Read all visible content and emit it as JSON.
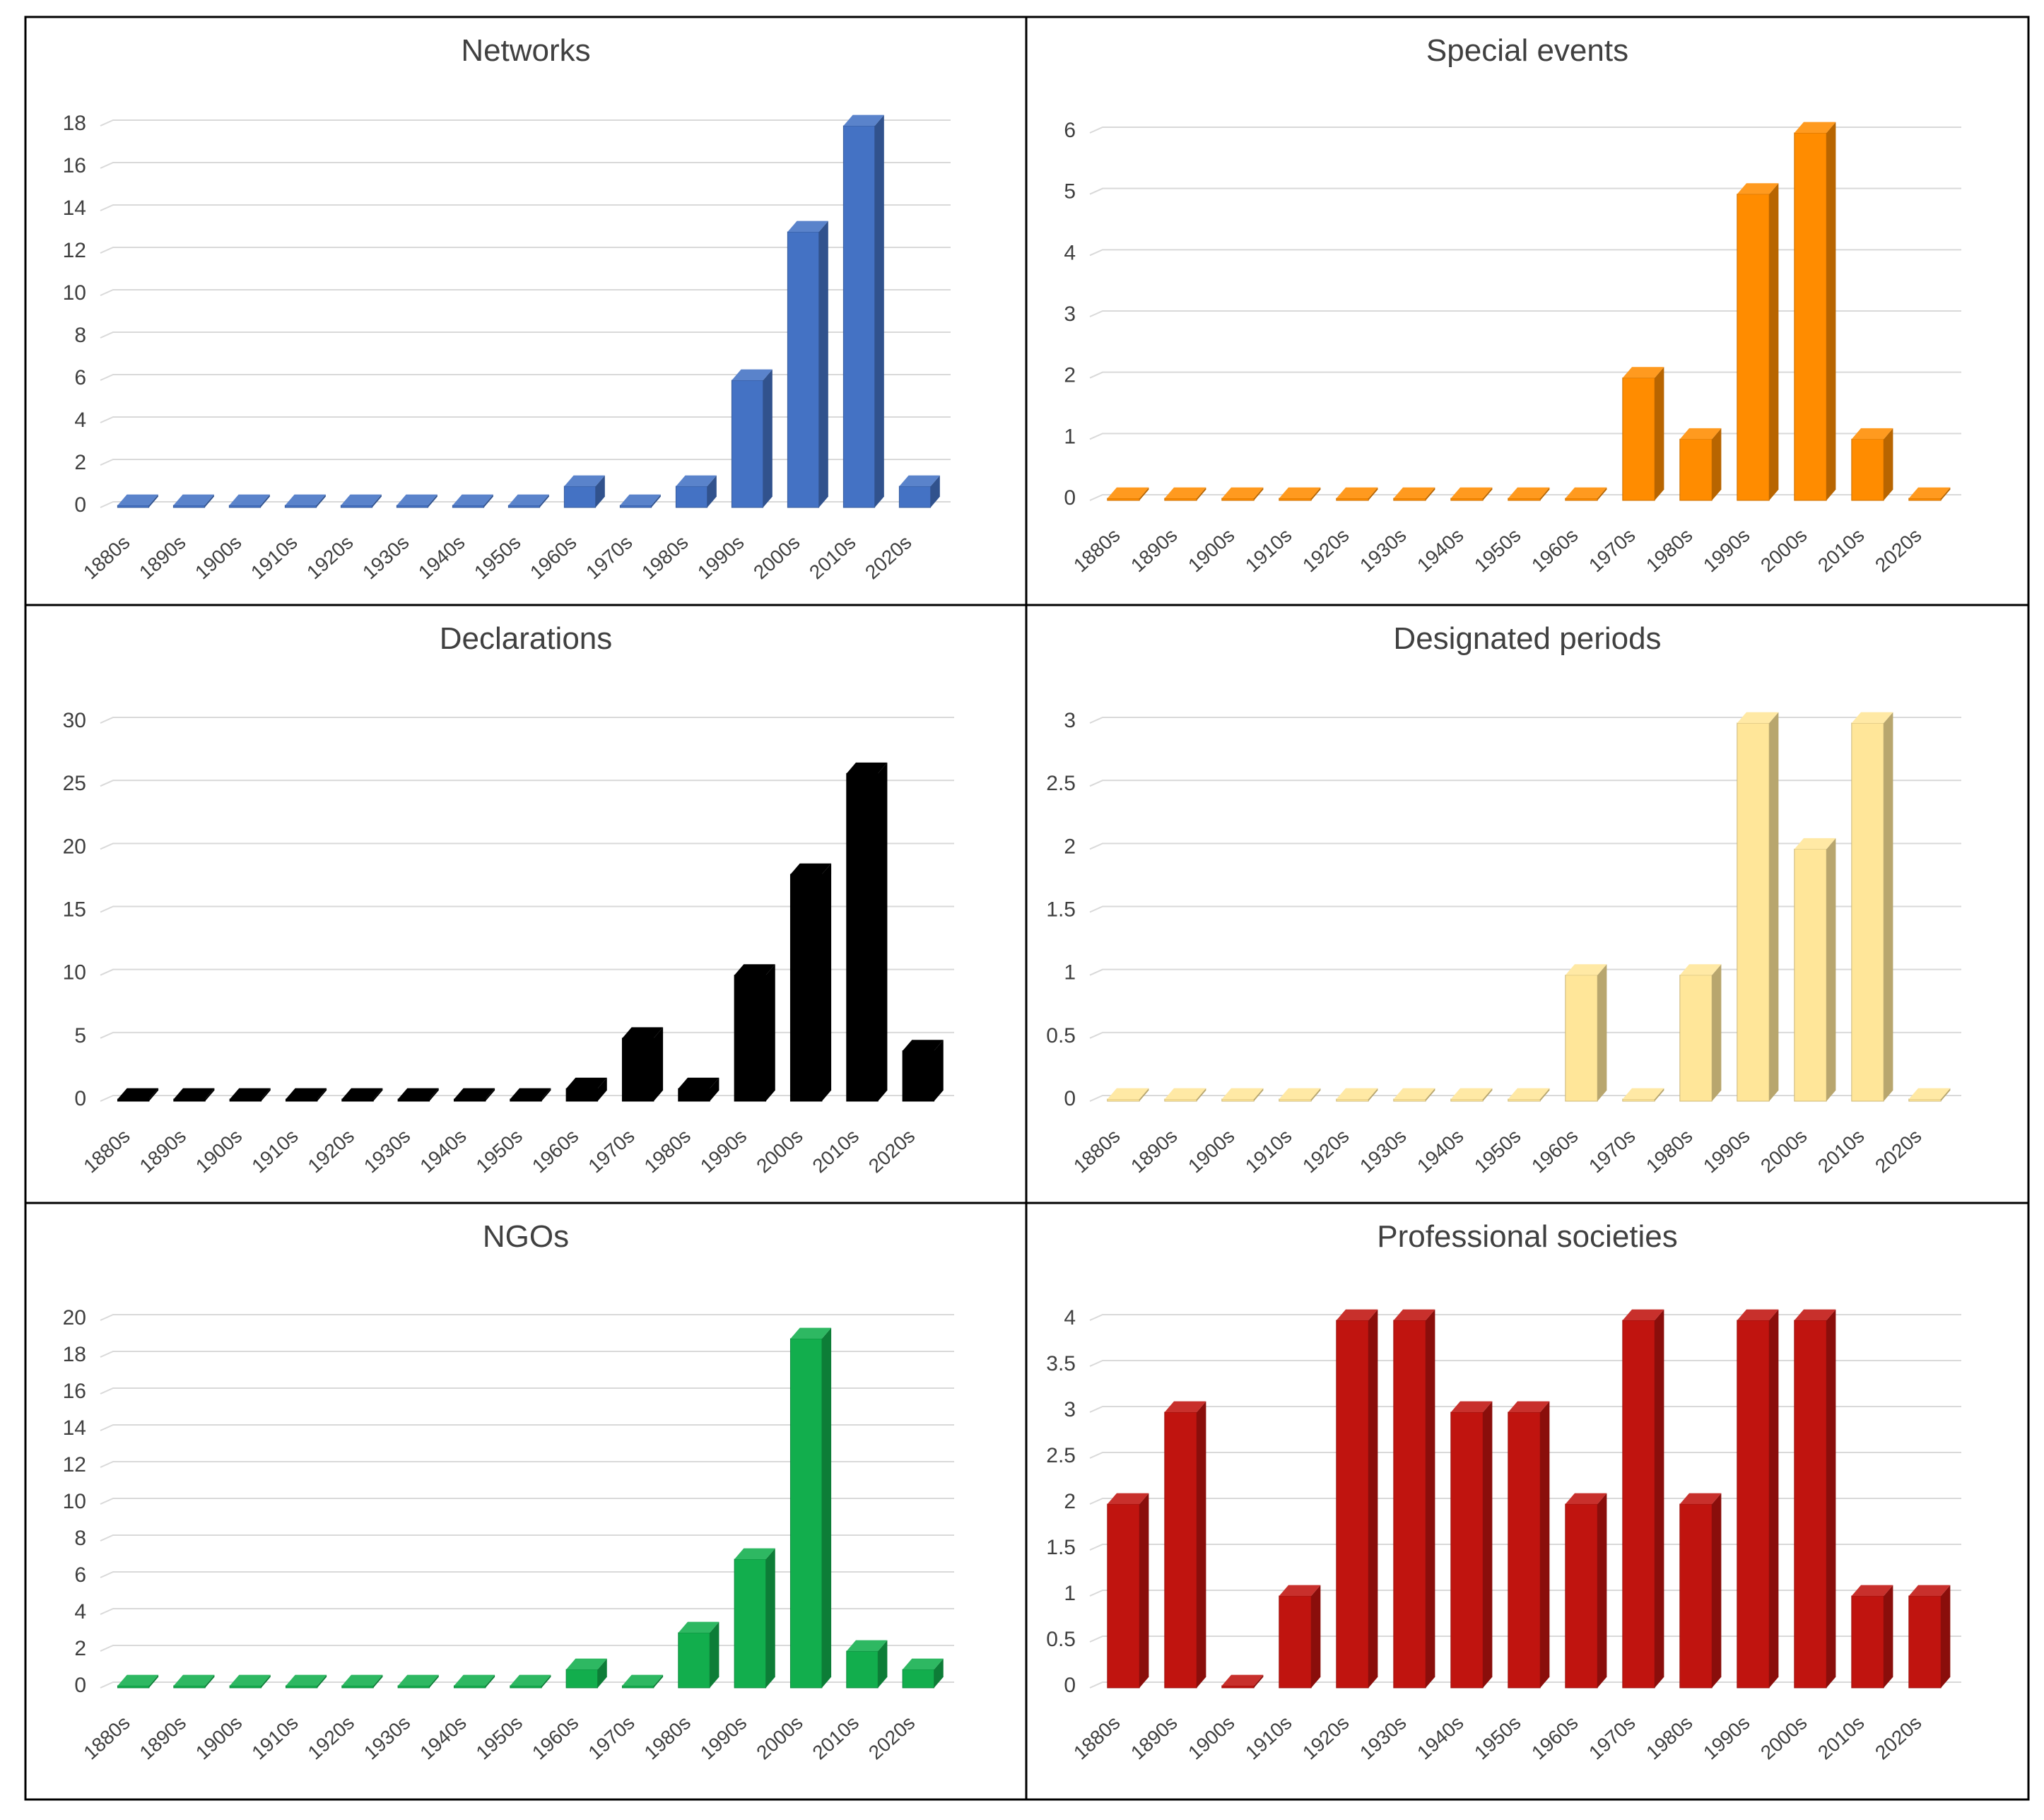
{
  "chart_data": [
    {
      "type": "bar",
      "title": "Networks",
      "categories": [
        "1880s",
        "1890s",
        "1900s",
        "1910s",
        "1920s",
        "1930s",
        "1940s",
        "1950s",
        "1960s",
        "1970s",
        "1980s",
        "1990s",
        "2000s",
        "2010s",
        "2020s"
      ],
      "values": [
        0,
        0,
        0,
        0,
        0,
        0,
        0,
        0,
        1,
        0,
        1,
        6,
        13,
        18,
        1
      ],
      "ylim": [
        0,
        18
      ],
      "yticks": [
        "0",
        "2",
        "4",
        "6",
        "8",
        "10",
        "12",
        "14",
        "16",
        "18"
      ],
      "xlabel": "",
      "ylabel": "",
      "color": "#4472C4"
    },
    {
      "type": "bar",
      "title": "Special events",
      "categories": [
        "1880s",
        "1890s",
        "1900s",
        "1910s",
        "1920s",
        "1930s",
        "1940s",
        "1950s",
        "1960s",
        "1970s",
        "1980s",
        "1990s",
        "2000s",
        "2010s",
        "2020s"
      ],
      "values": [
        0,
        0,
        0,
        0,
        0,
        0,
        0,
        0,
        0,
        2,
        1,
        5,
        6,
        1,
        0
      ],
      "ylim": [
        0,
        6
      ],
      "yticks": [
        "0",
        "1",
        "2",
        "3",
        "4",
        "5",
        "6"
      ],
      "xlabel": "",
      "ylabel": "",
      "color": "#FF8C00"
    },
    {
      "type": "bar",
      "title": "Declarations",
      "categories": [
        "1880s",
        "1890s",
        "1900s",
        "1910s",
        "1920s",
        "1930s",
        "1940s",
        "1950s",
        "1960s",
        "1970s",
        "1980s",
        "1990s",
        "2000s",
        "2010s",
        "2020s"
      ],
      "values": [
        0,
        0,
        0,
        0,
        0,
        0,
        0,
        0,
        1,
        5,
        1,
        10,
        18,
        26,
        4
      ],
      "ylim": [
        0,
        30
      ],
      "yticks": [
        "0",
        "5",
        "10",
        "15",
        "20",
        "25",
        "30"
      ],
      "xlabel": "",
      "ylabel": "",
      "color": "#000000"
    },
    {
      "type": "bar",
      "title": "Designated periods",
      "categories": [
        "1880s",
        "1890s",
        "1900s",
        "1910s",
        "1920s",
        "1930s",
        "1940s",
        "1950s",
        "1960s",
        "1970s",
        "1980s",
        "1990s",
        "2000s",
        "2010s",
        "2020s"
      ],
      "values": [
        0,
        0,
        0,
        0,
        0,
        0,
        0,
        0,
        1,
        0,
        1,
        3,
        2,
        3,
        0
      ],
      "ylim": [
        0,
        3
      ],
      "yticks": [
        "0",
        "0.5",
        "1",
        "1.5",
        "2",
        "2.5",
        "3"
      ],
      "xlabel": "",
      "ylabel": "",
      "color": "#FFE699"
    },
    {
      "type": "bar",
      "title": "NGOs",
      "categories": [
        "1880s",
        "1890s",
        "1900s",
        "1910s",
        "1920s",
        "1930s",
        "1940s",
        "1950s",
        "1960s",
        "1970s",
        "1980s",
        "1990s",
        "2000s",
        "2010s",
        "2020s"
      ],
      "values": [
        0,
        0,
        0,
        0,
        0,
        0,
        0,
        0,
        1,
        0,
        3,
        7,
        19,
        2,
        1
      ],
      "ylim": [
        0,
        20
      ],
      "yticks": [
        "0",
        "2",
        "4",
        "6",
        "8",
        "10",
        "12",
        "14",
        "16",
        "18",
        "20"
      ],
      "xlabel": "",
      "ylabel": "",
      "color": "#12AE4D"
    },
    {
      "type": "bar",
      "title": "Professional societies",
      "categories": [
        "1880s",
        "1890s",
        "1900s",
        "1910s",
        "1920s",
        "1930s",
        "1940s",
        "1950s",
        "1960s",
        "1970s",
        "1980s",
        "1990s",
        "2000s",
        "2010s",
        "2020s"
      ],
      "values": [
        2,
        3,
        0,
        1,
        4,
        4,
        3,
        3,
        2,
        4,
        2,
        4,
        4,
        1,
        1
      ],
      "ylim": [
        0,
        4
      ],
      "yticks": [
        "0",
        "0.5",
        "1",
        "1.5",
        "2",
        "2.5",
        "3",
        "3.5",
        "4"
      ],
      "xlabel": "",
      "ylabel": "",
      "color": "#C0140F"
    }
  ]
}
